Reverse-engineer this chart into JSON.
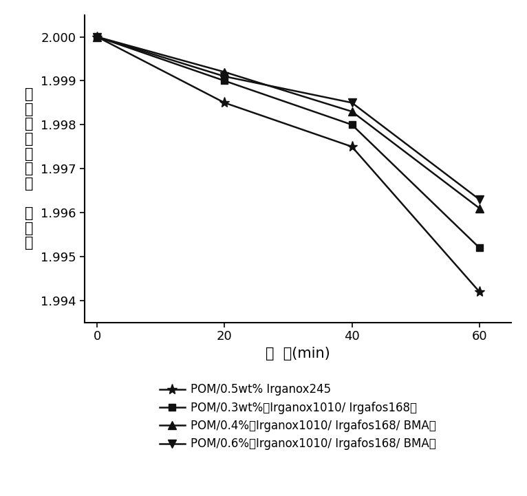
{
  "x": [
    0,
    20,
    40,
    60
  ],
  "series": [
    {
      "label": "POM/0.5wt% Irganox245",
      "y": [
        2.0,
        1.9985,
        1.9975,
        1.9942
      ],
      "marker": "*",
      "color": "#111111",
      "markersize": 11,
      "linewidth": 1.8,
      "linestyle": "-"
    },
    {
      "label": "POM/0.3wt%（Irganox1010/ Irgafos168）",
      "y": [
        2.0,
        1.999,
        1.998,
        1.9952
      ],
      "marker": "s",
      "color": "#111111",
      "markersize": 7,
      "linewidth": 1.8,
      "linestyle": "-"
    },
    {
      "label": "POM/0.4%（Irganox1010/ Irgafos168/ BMA）",
      "y": [
        2.0,
        1.9992,
        1.9983,
        1.9961
      ],
      "marker": "^",
      "color": "#111111",
      "markersize": 8,
      "linewidth": 1.8,
      "linestyle": "-"
    },
    {
      "label": "POM/0.6%（Irganox1010/ Irgafos168/ BMA）",
      "y": [
        2.0,
        1.9991,
        1.9985,
        1.9963
      ],
      "marker": "v",
      "color": "#111111",
      "markersize": 8,
      "linewidth": 1.8,
      "linestyle": "-"
    }
  ],
  "xlabel": "时  间(min)",
  "ylabel_chars": [
    "剩",
    "余",
    "质",
    "量",
    "百",
    "分",
    "比",
    " ",
    "的",
    "对",
    "数"
  ],
  "xlim": [
    -2,
    65
  ],
  "ylim": [
    1.9935,
    2.0005
  ],
  "xticks": [
    0,
    20,
    40,
    60
  ],
  "yticks": [
    1.994,
    1.995,
    1.996,
    1.997,
    1.998,
    1.999,
    2.0
  ],
  "background_color": "#ffffff",
  "axis_fontsize": 15,
  "tick_fontsize": 13,
  "legend_fontsize": 12
}
